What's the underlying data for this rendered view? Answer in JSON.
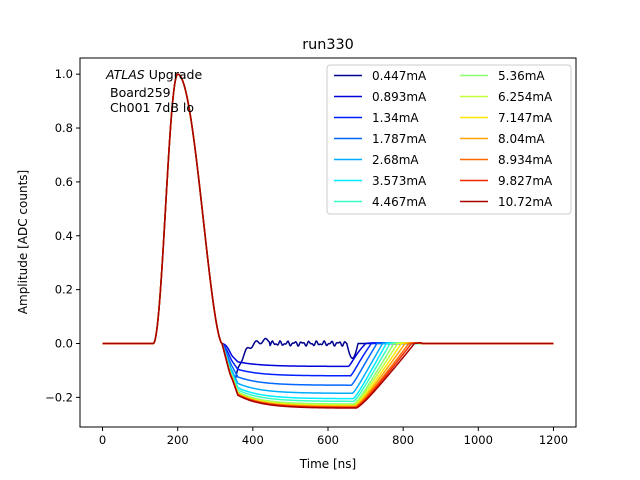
{
  "chart_data": {
    "type": "line",
    "title": "run330",
    "xlabel": "Time [ns]",
    "ylabel": "Amplitude [ADC counts]",
    "xlim": [
      -60,
      1260
    ],
    "ylim": [
      -0.31,
      1.06
    ],
    "xticks": [
      0,
      200,
      400,
      600,
      800,
      1000,
      1200
    ],
    "yticks": [
      -0.2,
      0.0,
      0.2,
      0.4,
      0.6,
      0.8,
      1.0
    ],
    "xtick_labels": [
      "0",
      "200",
      "400",
      "600",
      "800",
      "1000",
      "1200"
    ],
    "ytick_labels": [
      "−0.2",
      "0.0",
      "0.2",
      "0.4",
      "0.6",
      "0.8",
      "1.0"
    ],
    "grid": false,
    "legend_placement": "top-right",
    "legend_columns": 2,
    "annotation": {
      "line1_italic": "ATLAS",
      "line1_rest": " Upgrade",
      "line2": "Board259",
      "line3": "Ch001 7dB lo"
    },
    "pulse": {
      "baseline": 0.0,
      "rise_start": 135,
      "peak_time": 200,
      "peak_value": 1.0,
      "zero_cross_time": 318,
      "recovery_tail_end": 830
    },
    "series": [
      {
        "name": "0.447mA",
        "color": "#00008f",
        "undershoot_min": 0.0,
        "settle_start": 650,
        "ring_end": 680
      },
      {
        "name": "0.893mA",
        "color": "#0000dc",
        "undershoot_min": -0.085,
        "settle_start": 655,
        "ring_end": 700
      },
      {
        "name": "1.34mA",
        "color": "#0020ff",
        "undershoot_min": -0.12,
        "settle_start": 660,
        "ring_end": 715
      },
      {
        "name": "1.787mA",
        "color": "#0068ff",
        "undershoot_min": -0.155,
        "settle_start": 662,
        "ring_end": 730
      },
      {
        "name": "2.68mA",
        "color": "#00acff",
        "undershoot_min": -0.185,
        "settle_start": 665,
        "ring_end": 745
      },
      {
        "name": "3.573mA",
        "color": "#00ecff",
        "undershoot_min": -0.205,
        "settle_start": 667,
        "ring_end": 755
      },
      {
        "name": "4.467mA",
        "color": "#36ffc1",
        "undershoot_min": -0.215,
        "settle_start": 668,
        "ring_end": 765
      },
      {
        "name": "5.36mA",
        "color": "#8bff6c",
        "undershoot_min": -0.225,
        "settle_start": 669,
        "ring_end": 775
      },
      {
        "name": "6.254mA",
        "color": "#c1ff36",
        "undershoot_min": -0.228,
        "settle_start": 670,
        "ring_end": 785
      },
      {
        "name": "7.147mA",
        "color": "#ffe600",
        "undershoot_min": -0.232,
        "settle_start": 671,
        "ring_end": 795
      },
      {
        "name": "8.04mA",
        "color": "#ffa400",
        "undershoot_min": -0.234,
        "settle_start": 672,
        "ring_end": 805
      },
      {
        "name": "8.934mA",
        "color": "#ff6800",
        "undershoot_min": -0.236,
        "settle_start": 673,
        "ring_end": 815
      },
      {
        "name": "9.827mA",
        "color": "#f32900",
        "undershoot_min": -0.238,
        "settle_start": 674,
        "ring_end": 822
      },
      {
        "name": "10.72mA",
        "color": "#a70000",
        "undershoot_min": -0.24,
        "settle_start": 675,
        "ring_end": 830
      }
    ]
  }
}
